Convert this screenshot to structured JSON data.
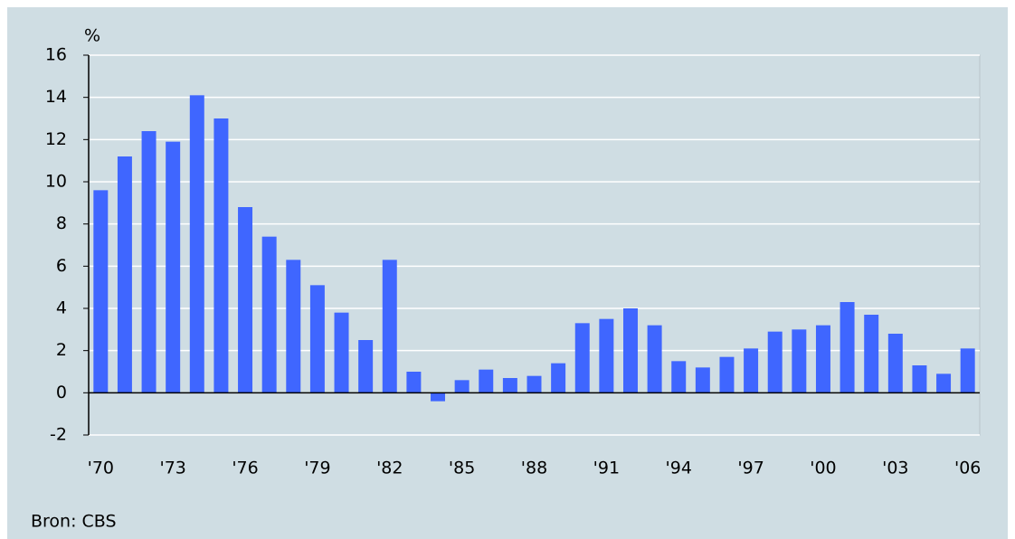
{
  "chart_data": {
    "type": "bar",
    "y_label": "%",
    "source": "Bron: CBS",
    "categories": [
      "'70",
      null,
      null,
      "'73",
      null,
      null,
      "'76",
      null,
      null,
      "'79",
      null,
      null,
      "'82",
      null,
      null,
      "'85",
      null,
      null,
      "'88",
      null,
      null,
      "'91",
      null,
      null,
      "'94",
      null,
      null,
      "'97",
      null,
      null,
      "'00",
      null,
      null,
      "'03",
      null,
      null,
      "'06"
    ],
    "values": [
      9.6,
      11.2,
      12.4,
      11.9,
      14.1,
      13.0,
      8.8,
      7.4,
      6.3,
      5.1,
      3.8,
      2.5,
      6.3,
      1.0,
      -0.4,
      0.6,
      1.1,
      0.7,
      0.8,
      1.4,
      3.3,
      3.5,
      4.0,
      3.2,
      1.5,
      1.2,
      1.7,
      2.1,
      2.9,
      3.0,
      3.2,
      4.3,
      3.7,
      2.8,
      1.3,
      0.9,
      2.1
    ],
    "color": "#3f66ff",
    "ylim": [
      -2,
      16
    ],
    "yticks": [
      -2,
      0,
      2,
      4,
      6,
      8,
      10,
      12,
      14,
      16
    ],
    "grid": true
  }
}
